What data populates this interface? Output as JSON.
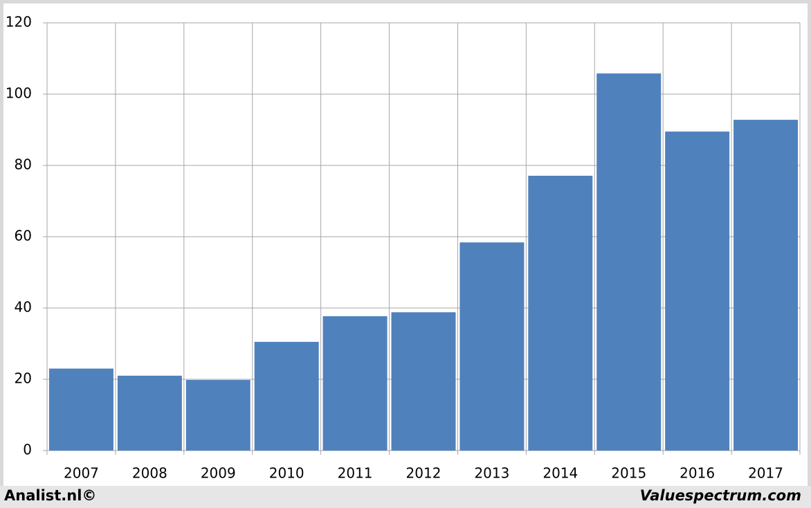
{
  "chart_data": {
    "type": "bar",
    "categories": [
      "2007",
      "2008",
      "2009",
      "2010",
      "2011",
      "2012",
      "2013",
      "2014",
      "2015",
      "2016",
      "2017"
    ],
    "values": [
      23,
      21,
      19.8,
      30.5,
      37.7,
      38.8,
      58.4,
      77.1,
      105.8,
      89.5,
      92.8
    ],
    "color": "#4f81bd",
    "ylim": [
      0,
      120
    ],
    "yticks": [
      0,
      20,
      40,
      60,
      80,
      100,
      120
    ],
    "grid": true,
    "source": "Analist.nl©",
    "credit": "Valuespectrum.com"
  }
}
